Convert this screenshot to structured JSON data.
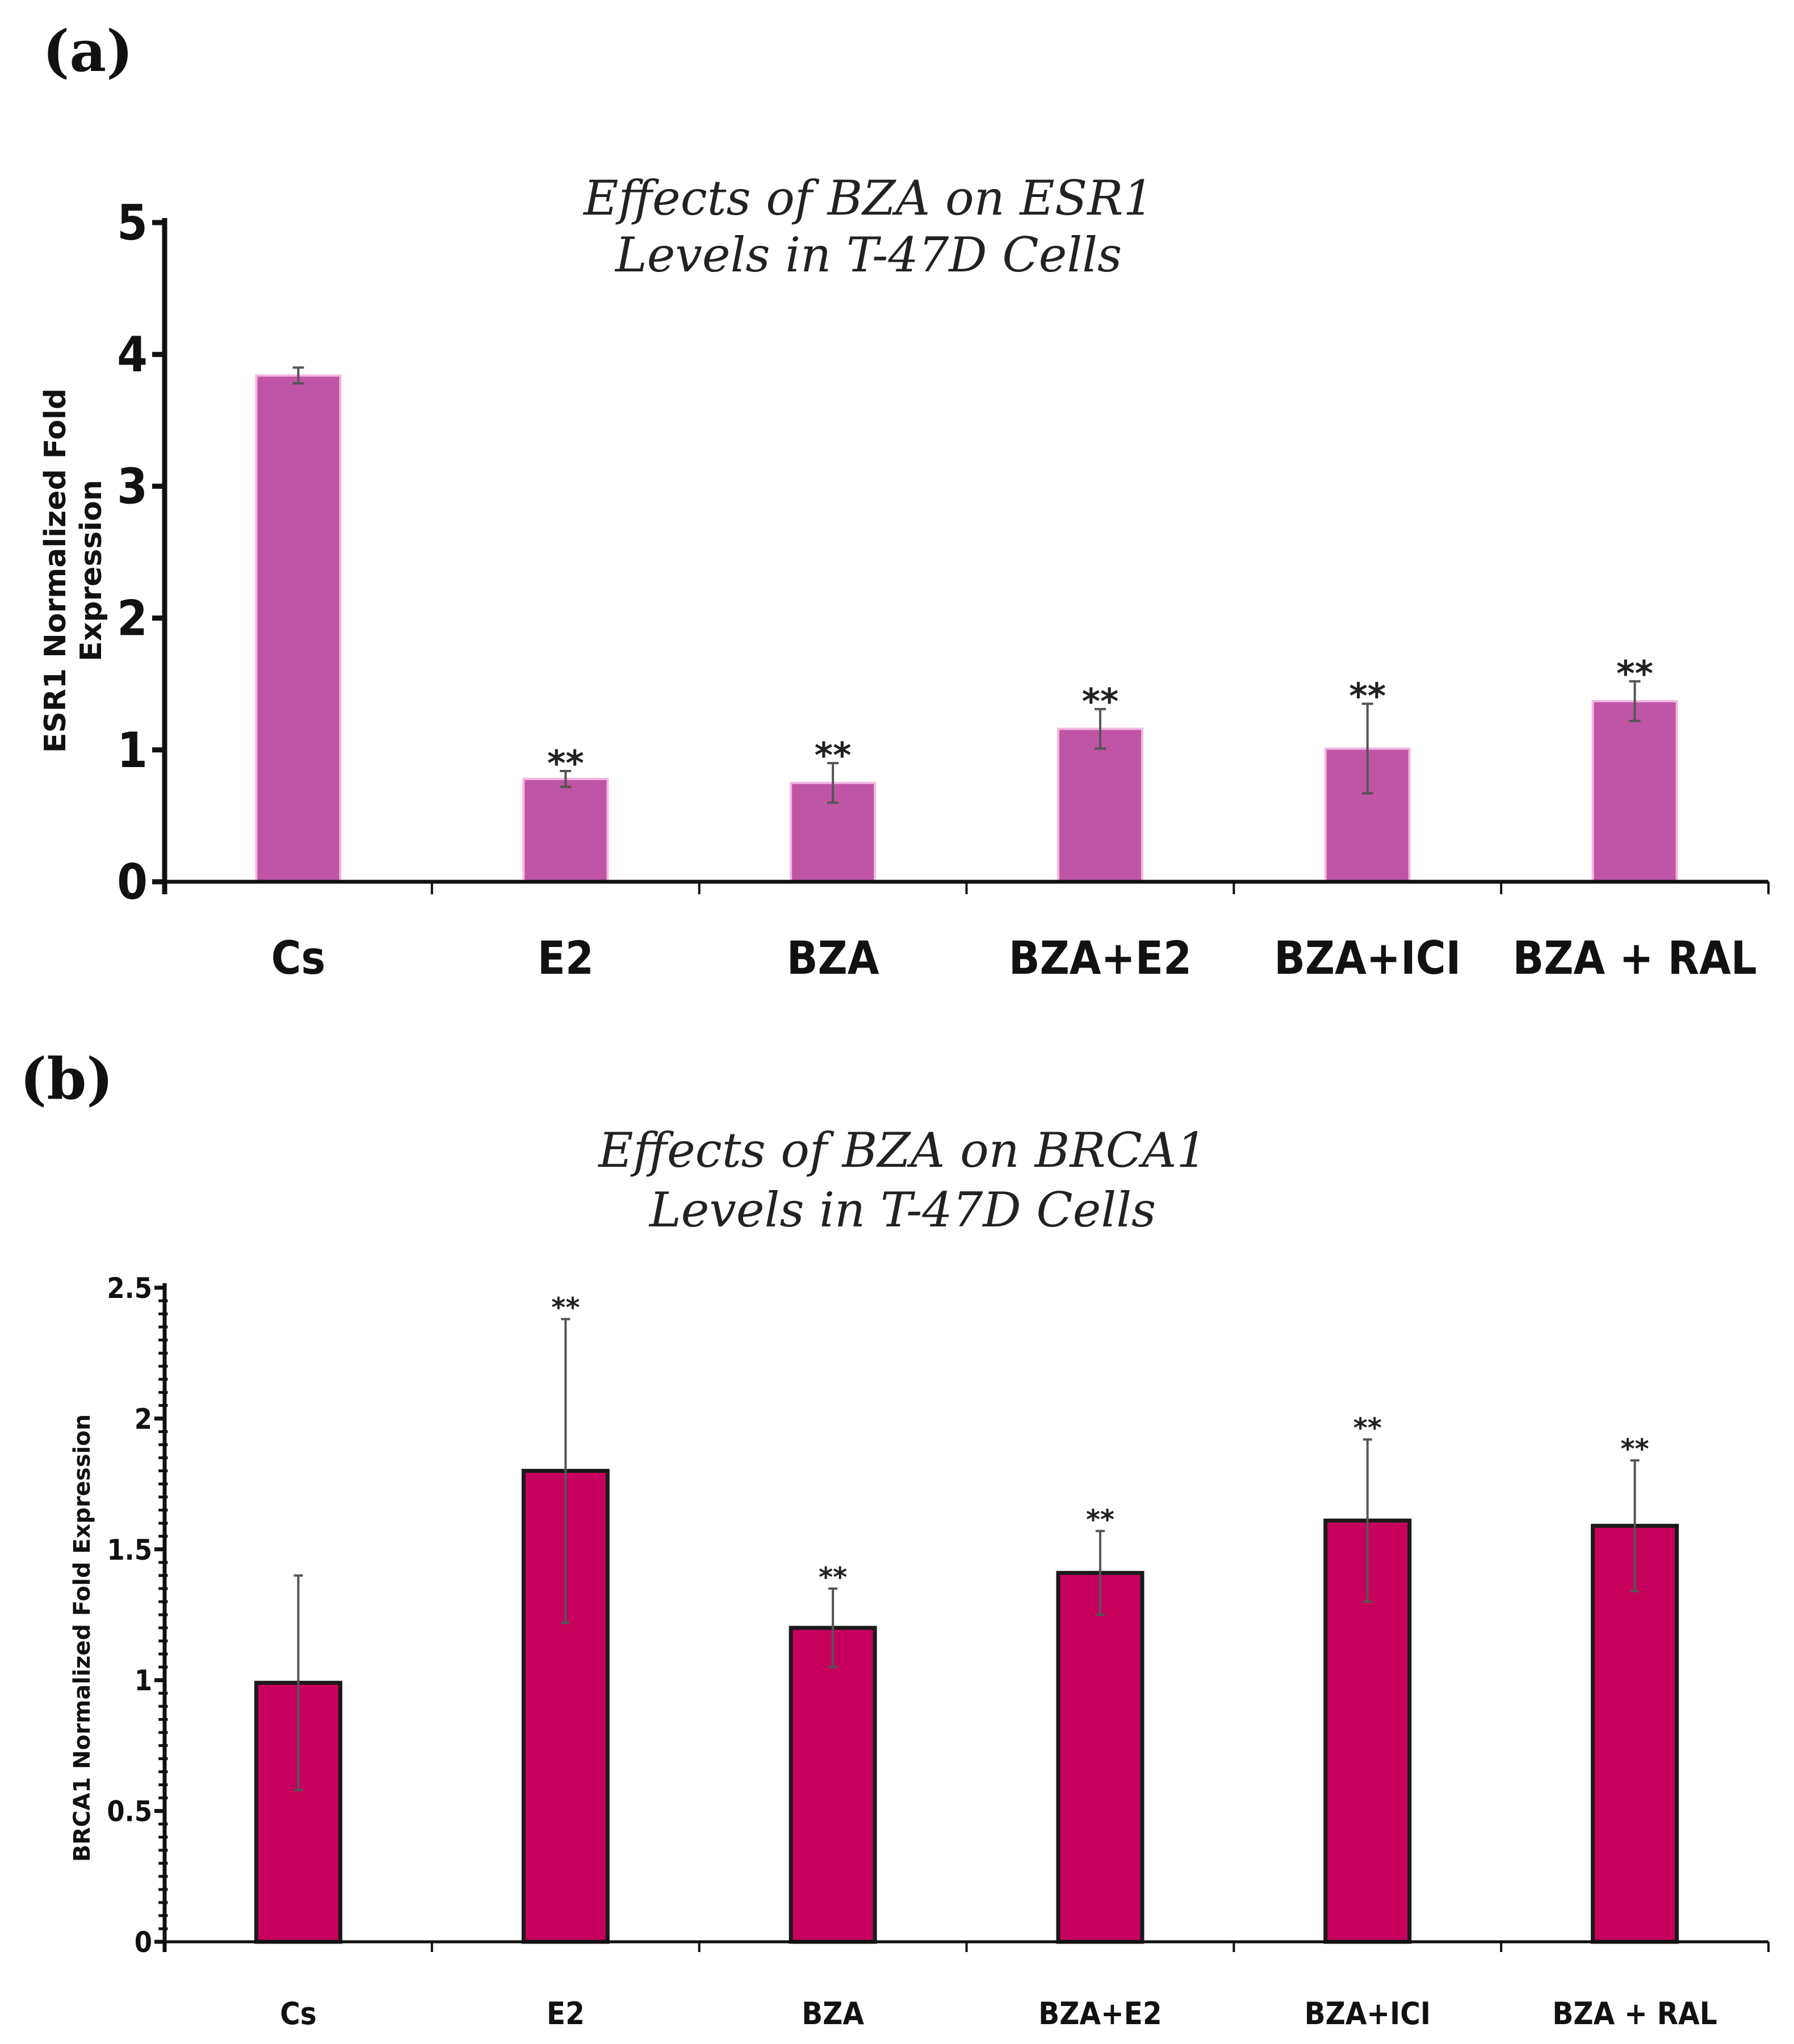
{
  "chart_data": [
    {
      "panel_label": "(a)",
      "type": "bar",
      "title": [
        "Effects of BZA on ESR1",
        "Levels in T-47D Cells"
      ],
      "ylabel": [
        "ESR1 Normalized Fold",
        "Expression"
      ],
      "xlabel": "",
      "categories": [
        "Cs",
        "E2",
        "BZA",
        "BZA+E2",
        "BZA+ICI",
        "BZA + RAL"
      ],
      "values": [
        3.84,
        0.78,
        0.75,
        1.16,
        1.01,
        1.37
      ],
      "error": [
        0.06,
        0.06,
        0.15,
        0.15,
        0.34,
        0.15
      ],
      "annotations": [
        "",
        "**",
        "**",
        "**",
        "**",
        "**"
      ],
      "ylim": [
        0,
        5
      ],
      "yticks": [
        0,
        1,
        2,
        3,
        4,
        5
      ],
      "ytick_labels": [
        "0",
        "1",
        "2",
        "3",
        "4",
        "5"
      ],
      "grid": false,
      "bar_color": "#c055a5",
      "bar_edge_color": "#f3b8e2"
    },
    {
      "panel_label": "(b)",
      "type": "bar",
      "title": [
        "Effects of BZA on BRCA1",
        "Levels in T-47D Cells"
      ],
      "ylabel": [
        "BRCA1 Normalized Fold Expression"
      ],
      "xlabel": "",
      "categories": [
        "Cs",
        "E2",
        "BZA",
        "BZA+E2",
        "BZA+ICI",
        "BZA + RAL"
      ],
      "values": [
        0.99,
        1.8,
        1.2,
        1.41,
        1.61,
        1.59
      ],
      "error": [
        0.41,
        0.58,
        0.15,
        0.16,
        0.31,
        0.25
      ],
      "annotations": [
        "",
        "**",
        "**",
        "**",
        "**",
        "**"
      ],
      "ylim": [
        0,
        2.5
      ],
      "yticks": [
        0,
        0.5,
        1,
        1.5,
        2,
        2.5
      ],
      "ytick_labels": [
        "0",
        "0.5",
        "1",
        "1.5",
        "2",
        "2.5"
      ],
      "grid": false,
      "bar_color": "#c8005d",
      "bar_edge_color": "#1a1a1a"
    }
  ]
}
